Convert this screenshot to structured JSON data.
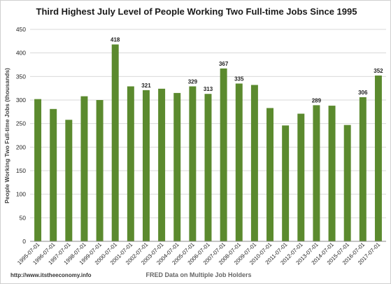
{
  "chart_data": {
    "type": "bar",
    "title": "Third Highest July Level of People Working Two Full-time Jobs Since 1995",
    "xlabel": "FRED Data on Multiple Job Holders",
    "ylabel": "People Working Two Full-time Jobs (thousands)",
    "ylim": [
      0,
      450
    ],
    "yticks": [
      0,
      50,
      100,
      150,
      200,
      250,
      300,
      350,
      400,
      450
    ],
    "grid": true,
    "legend": "none",
    "color": "#5b8a2e",
    "categories": [
      "1995-07-01",
      "1996-07-01",
      "1997-07-01",
      "1998-07-01",
      "1999-07-01",
      "2000-07-01",
      "2001-07-01",
      "2002-07-01",
      "2003-07-01",
      "2004-07-01",
      "2005-07-01",
      "2006-07-01",
      "2007-07-01",
      "2008-07-01",
      "2009-07-01",
      "2010-07-01",
      "2011-07-01",
      "2012-07-01",
      "2013-07-01",
      "2014-07-01",
      "2015-07-01",
      "2016-07-01",
      "2017-07-01"
    ],
    "values": [
      302,
      281,
      258,
      308,
      300,
      418,
      329,
      321,
      324,
      315,
      329,
      313,
      367,
      335,
      332,
      283,
      246,
      271,
      289,
      288,
      247,
      306,
      352
    ],
    "data_labels": [
      null,
      null,
      null,
      null,
      null,
      "418",
      null,
      "321",
      null,
      null,
      "329",
      "313",
      "367",
      "335",
      null,
      null,
      null,
      null,
      "289",
      null,
      null,
      "306",
      "352"
    ]
  },
  "footer": {
    "source_url": "http://www.itstheeconomy.info"
  }
}
